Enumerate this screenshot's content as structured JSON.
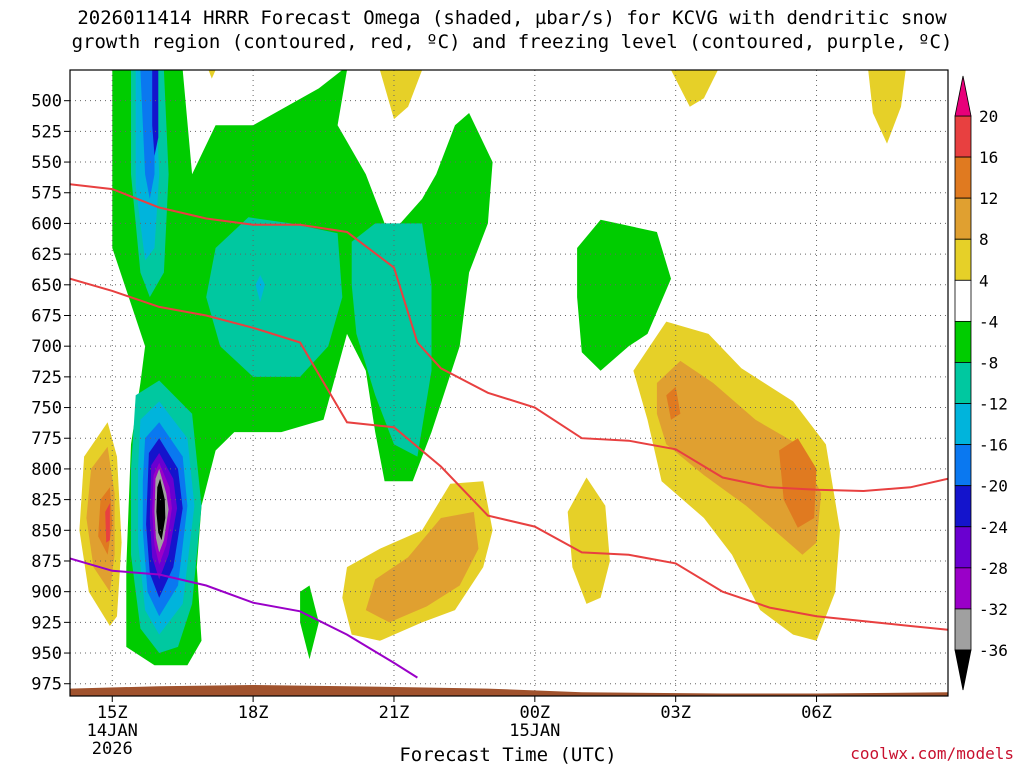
{
  "title_line1": "2026011414 HRRR Forecast Omega (shaded, µbar/s) for KCVG with dendritic snow",
  "title_line2": "growth region (contoured, red, ºC) and freezing level (contoured, purple, ºC)",
  "credit": "coolwx.com/models",
  "colors": {
    "omega_scale": [
      "#000000",
      "#a0a0a0",
      "#9a00c8",
      "#6a00d0",
      "#1414cc",
      "#0a78f0",
      "#00b4dc",
      "#00c8a0",
      "#00cc00",
      "#ffffff",
      "#e6d028",
      "#e0a030",
      "#e07a20",
      "#e84040",
      "#e8007a"
    ],
    "dgz_line": "#e84040",
    "freezing_line": "#9a00c8",
    "ground": "#a0522d"
  },
  "chart_data": {
    "type": "heatmap",
    "title": "2026011414 HRRR Forecast Omega (shaded, µbar/s) for KCVG with dendritic snow growth region (contoured, red, ºC) and freezing level (contoured, purple, ºC)",
    "xlabel": "Forecast Time (UTC)",
    "ylabel": "",
    "x_range_hours_utc": [
      14.1,
      32.8
    ],
    "y_range_mb": [
      475,
      985
    ],
    "y_scale": "reversed",
    "grid": true,
    "x_ticks": [
      {
        "label": "15Z",
        "sub": [
          "14JAN",
          "2026"
        ],
        "hour": 15
      },
      {
        "label": "18Z",
        "sub": [],
        "hour": 18
      },
      {
        "label": "21Z",
        "sub": [],
        "hour": 21
      },
      {
        "label": "00Z",
        "sub": [
          "15JAN"
        ],
        "hour": 24
      },
      {
        "label": "03Z",
        "sub": [],
        "hour": 27
      },
      {
        "label": "06Z",
        "sub": [],
        "hour": 30
      }
    ],
    "y_ticks": [
      "500",
      "525",
      "550",
      "575",
      "600",
      "625",
      "650",
      "675",
      "700",
      "725",
      "750",
      "775",
      "800",
      "825",
      "850",
      "875",
      "900",
      "925",
      "950",
      "975"
    ],
    "colorbar": {
      "labels": [
        "20",
        "16",
        "12",
        "8",
        "4",
        "-4",
        "-8",
        "-12",
        "-16",
        "-20",
        "-24",
        "-28",
        "-32",
        "-36"
      ],
      "bounds": [
        20,
        16,
        12,
        8,
        4,
        -4,
        -8,
        -12,
        -16,
        -20,
        -24,
        -28,
        -32,
        -36
      ]
    },
    "dgz_upper_contour": [
      [
        14.1,
        568
      ],
      [
        15.0,
        572
      ],
      [
        16.0,
        587
      ],
      [
        17.0,
        596
      ],
      [
        18.0,
        601
      ],
      [
        19.0,
        601
      ],
      [
        20.0,
        607
      ],
      [
        21.0,
        636
      ],
      [
        21.5,
        697
      ],
      [
        22.0,
        718
      ],
      [
        23.0,
        738
      ],
      [
        24.0,
        750
      ],
      [
        25.0,
        775
      ],
      [
        26.0,
        777
      ],
      [
        27.0,
        784
      ],
      [
        28.0,
        807
      ],
      [
        29.0,
        815
      ],
      [
        30.0,
        817
      ],
      [
        31.0,
        818
      ],
      [
        32.0,
        815
      ],
      [
        32.8,
        808
      ]
    ],
    "dgz_lower_contour": [
      [
        14.1,
        645
      ],
      [
        15.0,
        655
      ],
      [
        16.0,
        668
      ],
      [
        17.0,
        675
      ],
      [
        18.0,
        685
      ],
      [
        19.0,
        697
      ],
      [
        20.0,
        762
      ],
      [
        21.0,
        766
      ],
      [
        22.0,
        798
      ],
      [
        23.0,
        838
      ],
      [
        24.0,
        847
      ],
      [
        25.0,
        868
      ],
      [
        26.0,
        870
      ],
      [
        27.0,
        877
      ],
      [
        28.0,
        900
      ],
      [
        29.0,
        913
      ],
      [
        30.0,
        920
      ],
      [
        31.0,
        924
      ],
      [
        32.0,
        928
      ],
      [
        32.8,
        931
      ]
    ],
    "freezing_level_contour": [
      [
        14.1,
        873
      ],
      [
        15.0,
        883
      ],
      [
        16.0,
        886
      ],
      [
        17.0,
        895
      ],
      [
        18.0,
        909
      ],
      [
        19.0,
        916
      ],
      [
        20.0,
        935
      ],
      [
        21.0,
        958
      ],
      [
        21.5,
        970
      ]
    ],
    "features": [
      {
        "kind": "omega_min_core",
        "hour": 16.0,
        "mb": 832,
        "value_range": [
          -36,
          -40
        ]
      },
      {
        "kind": "omega_upward_column",
        "hour": 16.0,
        "mb_range": [
          475,
          955
        ],
        "value_min": -24
      },
      {
        "kind": "omega_positive_max",
        "hour": 29.9,
        "mb": 800,
        "value_range": [
          12,
          16
        ]
      },
      {
        "kind": "omega_positive_max",
        "hour": 14.9,
        "mb": 835,
        "value_range": [
          12,
          16
        ]
      },
      {
        "kind": "omega_positive_max",
        "hour": 22.0,
        "mb": 875,
        "value_range": [
          8,
          12
        ]
      }
    ]
  }
}
